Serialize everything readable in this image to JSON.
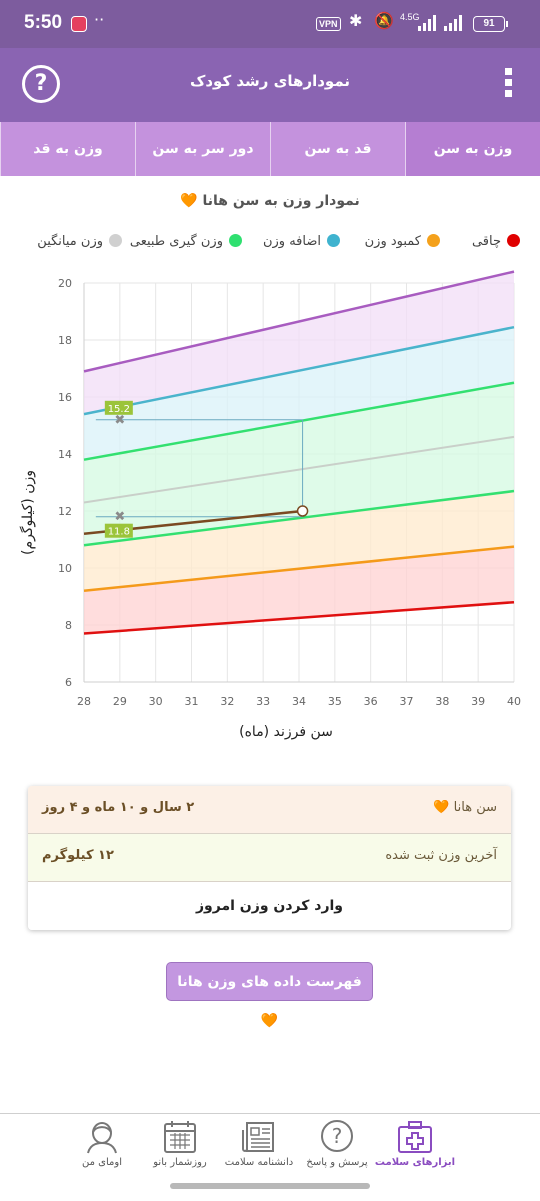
{
  "status": {
    "time": "5:50",
    "vpn": "VPN",
    "network": "4.5G",
    "battery": "91"
  },
  "appbar": {
    "title": "نمودارهای رشد کودک",
    "help": "?"
  },
  "tabs": [
    {
      "label": "وزن به سن",
      "active": true
    },
    {
      "label": "قد به سن",
      "active": false
    },
    {
      "label": "دور سر به سن",
      "active": false
    },
    {
      "label": "وزن به قد",
      "active": false
    }
  ],
  "chart_title": "نمودار وزن به سن هانا 🧡",
  "legend": [
    {
      "label": "چاقی",
      "color": "#e00000"
    },
    {
      "label": "کمبود وزن",
      "color": "#f4a11c"
    },
    {
      "label": "اضافه وزن",
      "color": "#3fb3cf"
    },
    {
      "label": "وزن گیری طبیعی",
      "color": "#2fe070"
    },
    {
      "label": "وزن میانگین",
      "color": "#d0d0d0"
    }
  ],
  "chart_data": {
    "type": "line",
    "xlabel": "سن فرزند (ماه)",
    "ylabel": "وزن (کیلوگرم)",
    "xlim": [
      28,
      40
    ],
    "ylim": [
      6,
      20
    ],
    "xticks": [
      28,
      29,
      30,
      31,
      32,
      33,
      34,
      35,
      36,
      37,
      38,
      39,
      40
    ],
    "yticks": [
      6,
      8,
      10,
      12,
      14,
      16,
      18,
      20
    ],
    "grid": true,
    "curves": [
      {
        "key": "red",
        "color": "#e01010",
        "x": [
          28,
          40
        ],
        "y": [
          7.7,
          8.8
        ]
      },
      {
        "key": "orange",
        "color": "#f49a1a",
        "x": [
          28,
          40
        ],
        "y": [
          9.2,
          10.75
        ]
      },
      {
        "key": "green-low",
        "color": "#33e070",
        "x": [
          28,
          40
        ],
        "y": [
          10.8,
          12.7
        ]
      },
      {
        "key": "median",
        "color": "#c9cfc9",
        "x": [
          28,
          40
        ],
        "y": [
          12.3,
          14.6
        ]
      },
      {
        "key": "green-high",
        "color": "#33e070",
        "x": [
          28,
          40
        ],
        "y": [
          13.8,
          16.5
        ]
      },
      {
        "key": "blue",
        "color": "#4ab4cc",
        "x": [
          28,
          40
        ],
        "y": [
          15.4,
          18.45
        ]
      },
      {
        "key": "purple",
        "color": "#a85cc0",
        "x": [
          28,
          40
        ],
        "y": [
          16.9,
          20.4
        ]
      }
    ],
    "bands": [
      {
        "lower": "red",
        "upper": "orange",
        "color": "#ffd2d2"
      },
      {
        "lower": "orange",
        "upper": "green-low",
        "color": "#ffe9cc"
      },
      {
        "lower": "green-low",
        "upper": "green-high",
        "color": "#d4f9e2"
      },
      {
        "lower": "green-high",
        "upper": "blue",
        "color": "#d9f1f8"
      },
      {
        "lower": "blue",
        "upper": "purple",
        "color": "#f1ddf7"
      }
    ],
    "child_series": {
      "color": "#7a4a22",
      "x": [
        28,
        34.1
      ],
      "y": [
        11.2,
        12.0
      ]
    },
    "child_point": {
      "x": 34.1,
      "y": 12.0
    },
    "markers": [
      {
        "x": 29,
        "y": 15.2,
        "label": "15.2"
      },
      {
        "x": 29,
        "y": 11.8,
        "label": "11.8"
      }
    ]
  },
  "summary": {
    "age_label": "سن هانا 🧡",
    "age_value": "۲ سال و ۱۰ ماه و ۴ روز",
    "weight_label": "آخرین وزن ثبت شده",
    "weight_value": "۱۲ کیلوگرم",
    "enter_button": "وارد کردن وزن امروز"
  },
  "list_button": "فهرست داده های وزن هانا 🧡",
  "bottom_nav": [
    {
      "label": "ابزارهای سلامت",
      "icon": "first-aid-kit-icon",
      "active": true
    },
    {
      "label": "پرسش و پاسخ",
      "icon": "question-bubble-icon",
      "active": false
    },
    {
      "label": "دانشنامه سلامت",
      "icon": "newspaper-icon",
      "active": false
    },
    {
      "label": "روزشمار بانو",
      "icon": "calendar-icon",
      "active": false
    },
    {
      "label": "اومای من",
      "icon": "profile-avatar-icon",
      "active": false
    }
  ]
}
